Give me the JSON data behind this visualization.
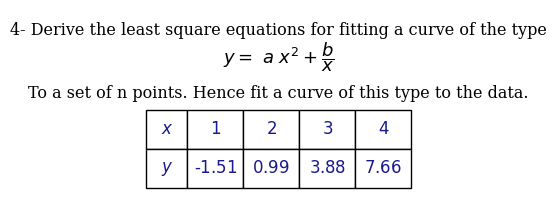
{
  "line1": "4- Derive the least square equations for fitting a curve of the type",
  "line3": "To a set of n points. Hence fit a curve of this type to the data.",
  "table_headers": [
    "x",
    "1",
    "2",
    "3",
    "4"
  ],
  "table_row2": [
    "y",
    "-1.51",
    "0.99",
    "3.88",
    "7.66"
  ],
  "bg_color": "#ffffff",
  "text_color": "#000000",
  "table_text_color": "#1a1a8c",
  "font_size_main": 11.5,
  "font_size_formula": 13,
  "font_size_table": 12
}
